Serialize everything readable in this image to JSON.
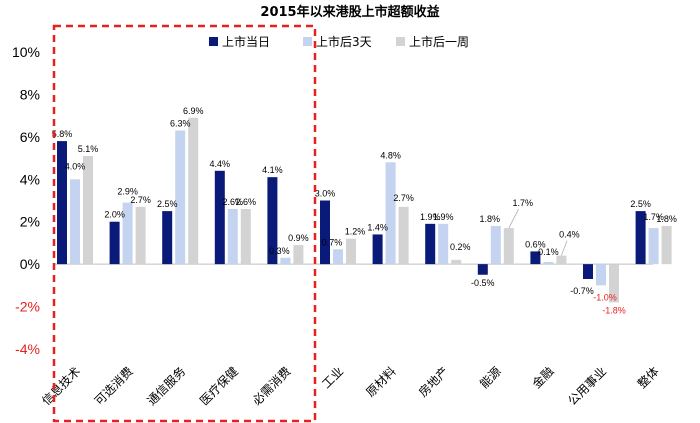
{
  "chart_data": {
    "type": "bar",
    "title": "2015年以来港股上市超额收益",
    "categories": [
      "信息技术",
      "可选消费",
      "通信服务",
      "医疗保健",
      "必需消费",
      "工业",
      "原材料",
      "房地产",
      "能源",
      "金融",
      "公用事业",
      "整体"
    ],
    "series": [
      {
        "name": "上市当日",
        "values": [
          5.8,
          2.0,
          2.5,
          4.4,
          4.1,
          3.0,
          1.4,
          1.9,
          -0.5,
          0.6,
          -0.7,
          2.5
        ]
      },
      {
        "name": "上市后3天",
        "values": [
          4.0,
          2.9,
          6.3,
          2.6,
          0.3,
          0.7,
          4.8,
          1.9,
          1.8,
          0.1,
          -1.0,
          1.7
        ]
      },
      {
        "name": "上市后一周",
        "values": [
          5.1,
          2.7,
          6.9,
          2.6,
          0.9,
          1.2,
          2.7,
          0.2,
          1.7,
          0.4,
          -1.8,
          1.8
        ]
      }
    ],
    "data_labels": [
      [
        "5.8%",
        "2.0%",
        "2.5%",
        "4.4%",
        "4.1%",
        "3.0%",
        "1.4%",
        "1.9%",
        "-0.5%",
        "0.6%",
        "-0.7%",
        "2.5%"
      ],
      [
        "4.0%",
        "2.9%",
        "6.3%",
        "2.6%",
        "0.3%",
        "0.7%",
        "4.8%",
        "1.9%",
        "1.8%",
        "0.1%",
        "-1.0%",
        "1.7%"
      ],
      [
        "5.1%",
        "2.7%",
        "6.9%",
        "2.6%",
        "0.9%",
        "1.2%",
        "2.7%",
        "0.2%",
        "1.7%",
        "0.4%",
        "-1.8%",
        "1.8%"
      ]
    ],
    "yticks": [
      "10%",
      "8%",
      "6%",
      "4%",
      "2%",
      "0%",
      "-2%",
      "-4%"
    ],
    "ylim": [
      -4,
      10
    ],
    "grid": false,
    "legend_position": "top-center",
    "highlight_box": "dashed red rectangle around 信息技术–必需消费",
    "colors": {
      "series": [
        "#0a1a78",
        "#c3d3f0",
        "#d3d3d3"
      ],
      "highlight": "#e8201e",
      "negative_tick": "#e8201e",
      "positive_tick": "#000000",
      "negative_label": "#e8201e"
    }
  }
}
